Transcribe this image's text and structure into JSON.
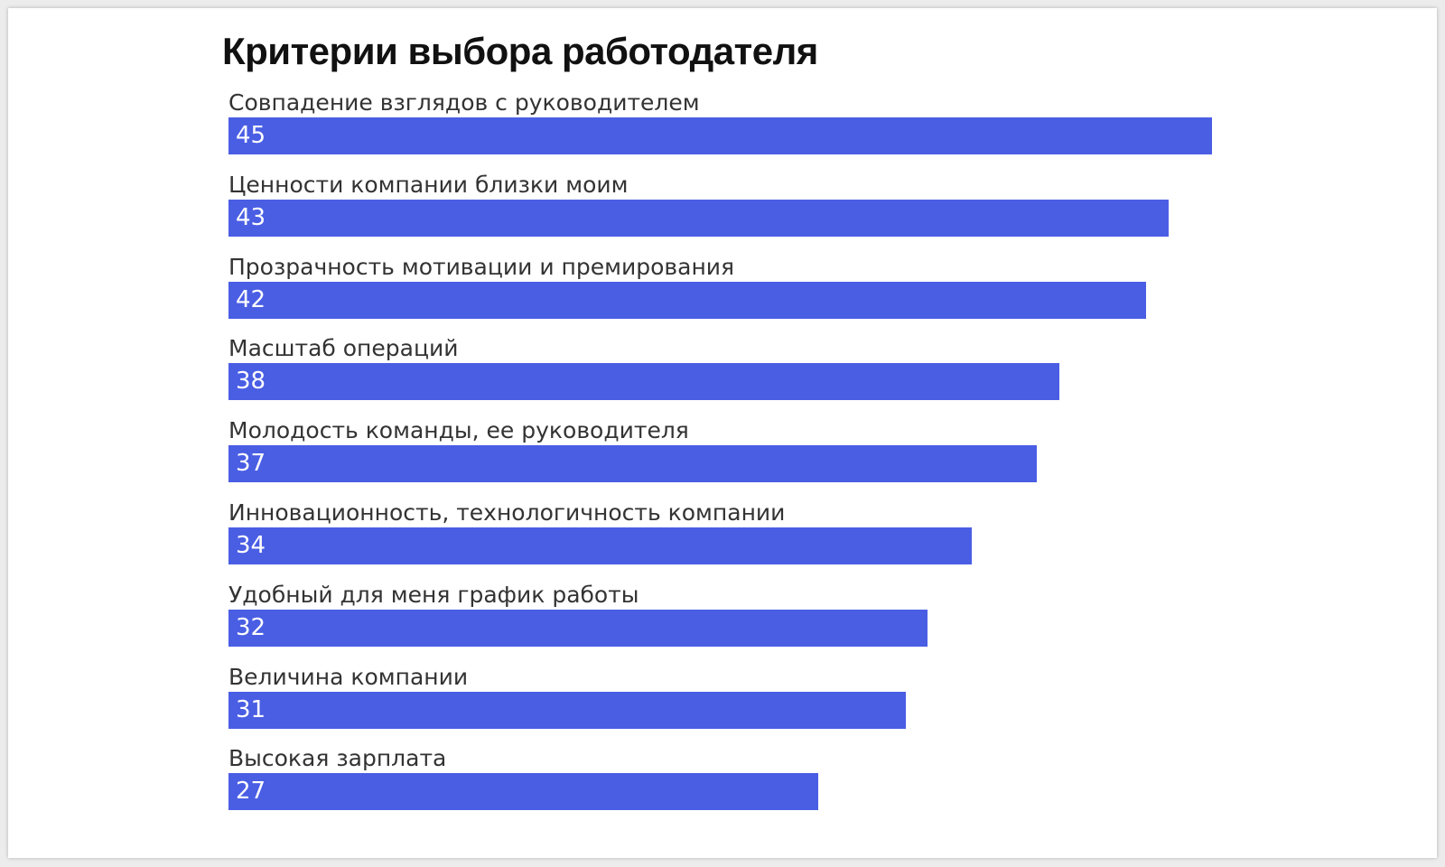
{
  "chart_data": {
    "type": "bar",
    "orientation": "horizontal",
    "title": "Критерии выбора работодателя",
    "categories": [
      "Совпадение взглядов с руководителем",
      "Ценности компании близки моим",
      "Прозрачность мотивации и премирования",
      "Масштаб операций",
      "Молодость команды, ее руководителя",
      "Инновационность, технологичность компании",
      "Удобный для меня график работы",
      "Величина компании",
      "Высокая зарплата"
    ],
    "values": [
      45,
      43,
      42,
      38,
      37,
      34,
      32,
      31,
      27
    ],
    "xlim": [
      0,
      45
    ],
    "grid": false,
    "color": "#4a5ee4"
  }
}
